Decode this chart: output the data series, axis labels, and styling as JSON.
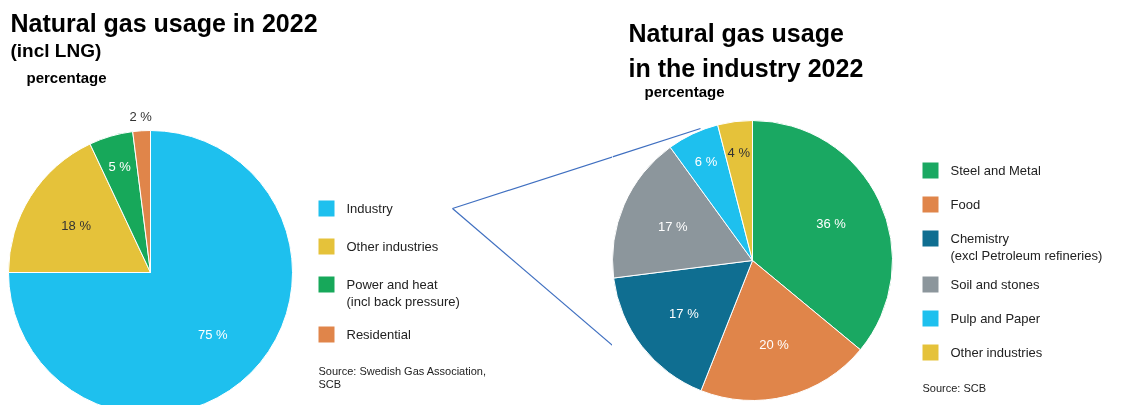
{
  "chart_data": [
    {
      "type": "pie",
      "title": "Natural gas usage in 2022",
      "subtitle": "(incl LNG)",
      "ylabel": "percentage",
      "categories": [
        "Industry",
        "Other industries",
        "Power and heat\n(incl back pressure)",
        "Residential"
      ],
      "values": [
        75,
        18,
        5,
        2
      ],
      "colors": [
        "#1ec0ee",
        "#e5c23a",
        "#17a85a",
        "#e0854a"
      ],
      "value_labels": [
        "75 %",
        "18 %",
        "5 %",
        "2 %"
      ],
      "legend": "right",
      "annotations": [
        "Source: Swedish Gas Association,\nSCB"
      ]
    },
    {
      "type": "pie",
      "title": "Natural gas usage\nin the industry 2022",
      "ylabel": "percentage",
      "categories": [
        "Steel and Metal",
        "Food",
        "Chemistry\n(excl Petroleum refineries)",
        "Soil and stones",
        "Pulp and Paper",
        "Other industries"
      ],
      "values": [
        36,
        20,
        17,
        17,
        6,
        4
      ],
      "colors": [
        "#1aa862",
        "#e0854a",
        "#0f6e91",
        "#8c969c",
        "#1ec0ee",
        "#e5c23a"
      ],
      "value_labels": [
        "36 %",
        "20 %",
        "17 %",
        "17 %",
        "6 %",
        "4 %"
      ],
      "legend": "right",
      "annotations": [
        "Source: SCB"
      ]
    }
  ]
}
